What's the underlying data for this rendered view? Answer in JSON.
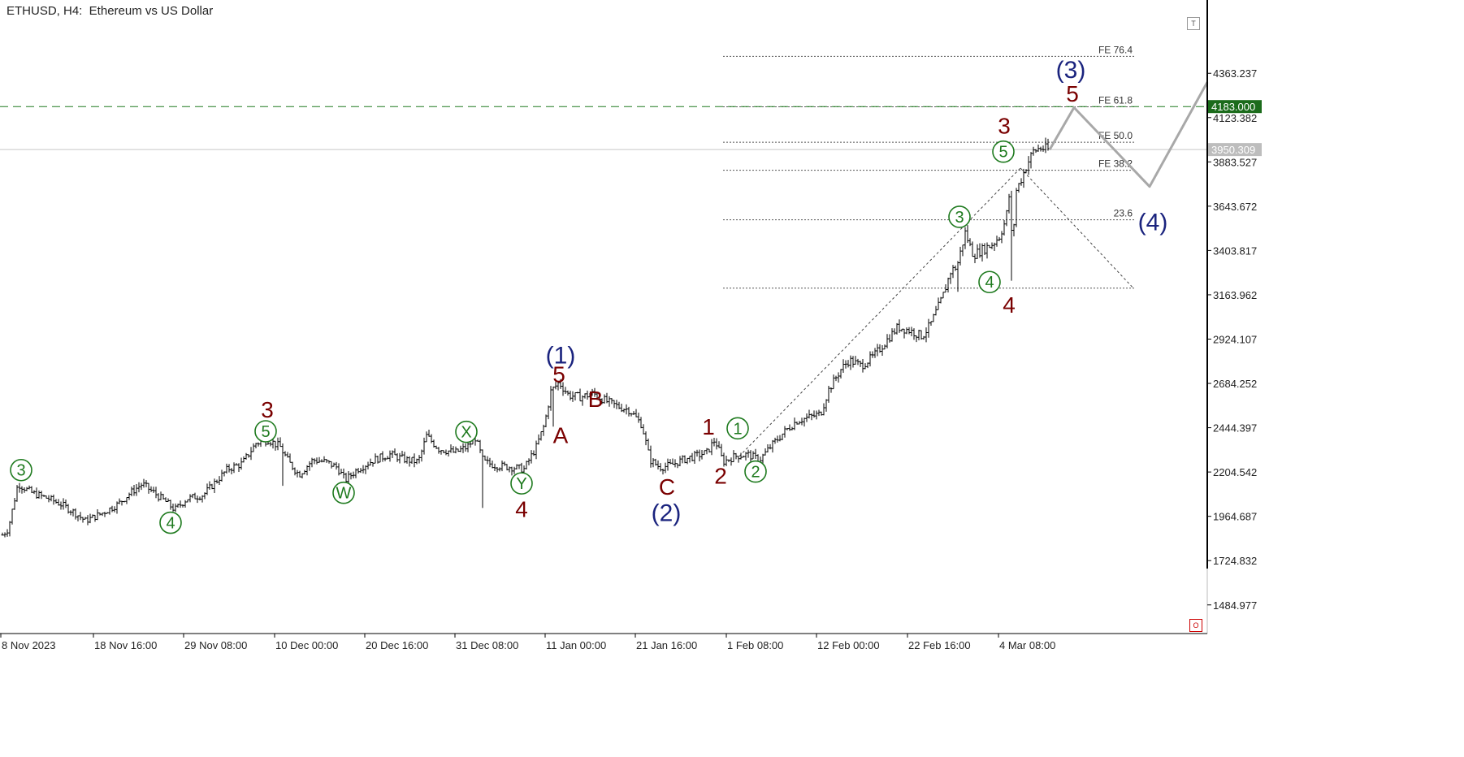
{
  "header": {
    "title": "ETHUSD, H4:  Ethereum vs US Dollar"
  },
  "buttons": {
    "top_right": "T",
    "bottom_right": "O"
  },
  "colors": {
    "background": "#ffffff",
    "bars": "#000000",
    "maroon_labels": "#7a0000",
    "green_labels": "#1e7a1e",
    "navy_labels": "#1a237e",
    "projection": "#a8a8a8",
    "target_line": "#1e7a1e",
    "target_tag_bg": "#1b6b1b",
    "current_tag_bg": "#bdbdbd"
  },
  "chart_data": {
    "type": "candlestick",
    "symbol": "ETHUSD",
    "timeframe": "H4",
    "title": "ETHUSD, H4:  Ethereum vs US Dollar",
    "y_axis": {
      "ticks": [
        "4363.237",
        "4123.382",
        "3883.527",
        "3643.672",
        "3403.817",
        "3163.962",
        "2924.107",
        "2684.252",
        "2444.397",
        "2204.542",
        "1964.687",
        "1724.832",
        "1484.977"
      ],
      "ylim": [
        1330,
        4760
      ]
    },
    "x_axis": {
      "ticks": [
        "8 Nov 2023",
        "18 Nov 16:00",
        "29 Nov 08:00",
        "10 Dec 00:00",
        "20 Dec 16:00",
        "31 Dec 08:00",
        "11 Jan 00:00",
        "21 Jan 16:00",
        "1 Feb 08:00",
        "12 Feb 00:00",
        "22 Feb 16:00",
        "4 Mar 08:00"
      ]
    },
    "price_path": [
      [
        0,
        1850
      ],
      [
        10,
        1895
      ],
      [
        22,
        2140
      ],
      [
        40,
        2090
      ],
      [
        60,
        2060
      ],
      [
        75,
        2030
      ],
      [
        90,
        1990
      ],
      [
        105,
        1940
      ],
      [
        125,
        1980
      ],
      [
        145,
        2030
      ],
      [
        160,
        2090
      ],
      [
        175,
        2140
      ],
      [
        190,
        2090
      ],
      [
        205,
        2040
      ],
      [
        215,
        2000
      ],
      [
        230,
        2060
      ],
      [
        250,
        2080
      ],
      [
        265,
        2150
      ],
      [
        280,
        2220
      ],
      [
        298,
        2250
      ],
      [
        315,
        2360
      ],
      [
        330,
        2380
      ],
      [
        345,
        2340
      ],
      [
        355,
        2260
      ],
      [
        368,
        2190
      ],
      [
        385,
        2270
      ],
      [
        400,
        2260
      ],
      [
        415,
        2230
      ],
      [
        425,
        2160
      ],
      [
        440,
        2220
      ],
      [
        460,
        2270
      ],
      [
        480,
        2300
      ],
      [
        500,
        2270
      ],
      [
        515,
        2260
      ],
      [
        525,
        2400
      ],
      [
        540,
        2330
      ],
      [
        560,
        2310
      ],
      [
        575,
        2340
      ],
      [
        585,
        2390
      ],
      [
        595,
        2260
      ],
      [
        610,
        2240
      ],
      [
        630,
        2230
      ],
      [
        645,
        2220
      ],
      [
        660,
        2340
      ],
      [
        670,
        2460
      ],
      [
        678,
        2640
      ],
      [
        688,
        2690
      ],
      [
        700,
        2620
      ],
      [
        715,
        2610
      ],
      [
        730,
        2630
      ],
      [
        745,
        2590
      ],
      [
        760,
        2560
      ],
      [
        775,
        2540
      ],
      [
        790,
        2460
      ],
      [
        800,
        2270
      ],
      [
        812,
        2230
      ],
      [
        825,
        2240
      ],
      [
        840,
        2270
      ],
      [
        855,
        2290
      ],
      [
        870,
        2310
      ],
      [
        880,
        2380
      ],
      [
        890,
        2260
      ],
      [
        905,
        2290
      ],
      [
        920,
        2300
      ],
      [
        935,
        2270
      ],
      [
        950,
        2350
      ],
      [
        965,
        2420
      ],
      [
        980,
        2480
      ],
      [
        995,
        2500
      ],
      [
        1010,
        2520
      ],
      [
        1020,
        2650
      ],
      [
        1035,
        2760
      ],
      [
        1045,
        2810
      ],
      [
        1060,
        2780
      ],
      [
        1075,
        2830
      ],
      [
        1090,
        2910
      ],
      [
        1105,
        2990
      ],
      [
        1120,
        2970
      ],
      [
        1135,
        2940
      ],
      [
        1145,
        3000
      ],
      [
        1160,
        3150
      ],
      [
        1170,
        3290
      ],
      [
        1178,
        3320
      ],
      [
        1188,
        3500
      ],
      [
        1198,
        3380
      ],
      [
        1210,
        3410
      ],
      [
        1222,
        3440
      ],
      [
        1230,
        3480
      ],
      [
        1238,
        3570
      ],
      [
        1243,
        3730
      ],
      [
        1246,
        3380
      ],
      [
        1250,
        3720
      ],
      [
        1256,
        3780
      ],
      [
        1264,
        3870
      ],
      [
        1272,
        3940
      ],
      [
        1280,
        3960
      ],
      [
        1290,
        3950
      ]
    ],
    "fibonacci_levels": [
      {
        "label": "FE 76.4",
        "price": 4455
      },
      {
        "label": "FE 61.8",
        "price": 4182
      },
      {
        "label": "FE 50.0",
        "price": 3990
      },
      {
        "label": "FE 38.2",
        "price": 3838
      },
      {
        "label": "23.6",
        "price": 3570
      },
      {
        "label": "",
        "price": 3200
      }
    ],
    "horizontal_lines": [
      {
        "name": "target",
        "price": 4183.0,
        "tag": "4183.000"
      },
      {
        "name": "current",
        "price": 3950.309,
        "tag": "3950.309"
      }
    ],
    "projection": [
      {
        "x": 1292,
        "price": 3950
      },
      {
        "x": 1322,
        "price": 4178
      },
      {
        "x": 1415,
        "price": 3750
      },
      {
        "x": 1486,
        "price": 4315
      }
    ],
    "fib_guides": [
      {
        "from": {
          "x": 910,
          "price": 2290
        },
        "to": {
          "x": 1256,
          "price": 3850
        }
      },
      {
        "from": {
          "x": 1256,
          "price": 3850
        },
        "to": {
          "x": 1395,
          "price": 3200
        }
      }
    ],
    "wave_labels": [
      {
        "text": "3",
        "style": "green-circle",
        "x": 26,
        "price": 2215
      },
      {
        "text": "4",
        "style": "green-circle",
        "x": 210,
        "price": 1930
      },
      {
        "text": "3",
        "style": "maroon",
        "x": 329,
        "price": 2543
      },
      {
        "text": "5",
        "style": "green-circle",
        "x": 327,
        "price": 2425
      },
      {
        "text": "W",
        "style": "green-circle",
        "x": 423,
        "price": 2092
      },
      {
        "text": "X",
        "style": "green-circle",
        "x": 574,
        "price": 2422
      },
      {
        "text": "Y",
        "style": "green-circle",
        "x": 642,
        "price": 2143
      },
      {
        "text": "4",
        "style": "maroon",
        "x": 642,
        "price": 2004
      },
      {
        "text": "(1)",
        "style": "navy",
        "x": 690,
        "price": 2840
      },
      {
        "text": "5",
        "style": "maroon",
        "x": 688,
        "price": 2735
      },
      {
        "text": "B",
        "style": "maroon",
        "x": 733,
        "price": 2600
      },
      {
        "text": "A",
        "style": "maroon",
        "x": 690,
        "price": 2405
      },
      {
        "text": "C",
        "style": "maroon",
        "x": 821,
        "price": 2125
      },
      {
        "text": "(2)",
        "style": "navy",
        "x": 820,
        "price": 1988
      },
      {
        "text": "1",
        "style": "maroon",
        "x": 872,
        "price": 2452
      },
      {
        "text": "1",
        "style": "green-circle",
        "x": 908,
        "price": 2441
      },
      {
        "text": "2",
        "style": "maroon",
        "x": 887,
        "price": 2185
      },
      {
        "text": "2",
        "style": "green-circle",
        "x": 930,
        "price": 2207
      },
      {
        "text": "3",
        "style": "green-circle",
        "x": 1181,
        "price": 3586
      },
      {
        "text": "4",
        "style": "green-circle",
        "x": 1218,
        "price": 3233
      },
      {
        "text": "4",
        "style": "maroon",
        "x": 1242,
        "price": 3112
      },
      {
        "text": "5",
        "style": "green-circle",
        "x": 1235,
        "price": 3939
      },
      {
        "text": "3",
        "style": "maroon",
        "x": 1236,
        "price": 4080
      },
      {
        "text": "(3)",
        "style": "navy",
        "x": 1318,
        "price": 4386
      },
      {
        "text": "5",
        "style": "maroon",
        "x": 1320,
        "price": 4255
      },
      {
        "text": "(4)",
        "style": "navy",
        "x": 1419,
        "price": 3562
      }
    ]
  }
}
